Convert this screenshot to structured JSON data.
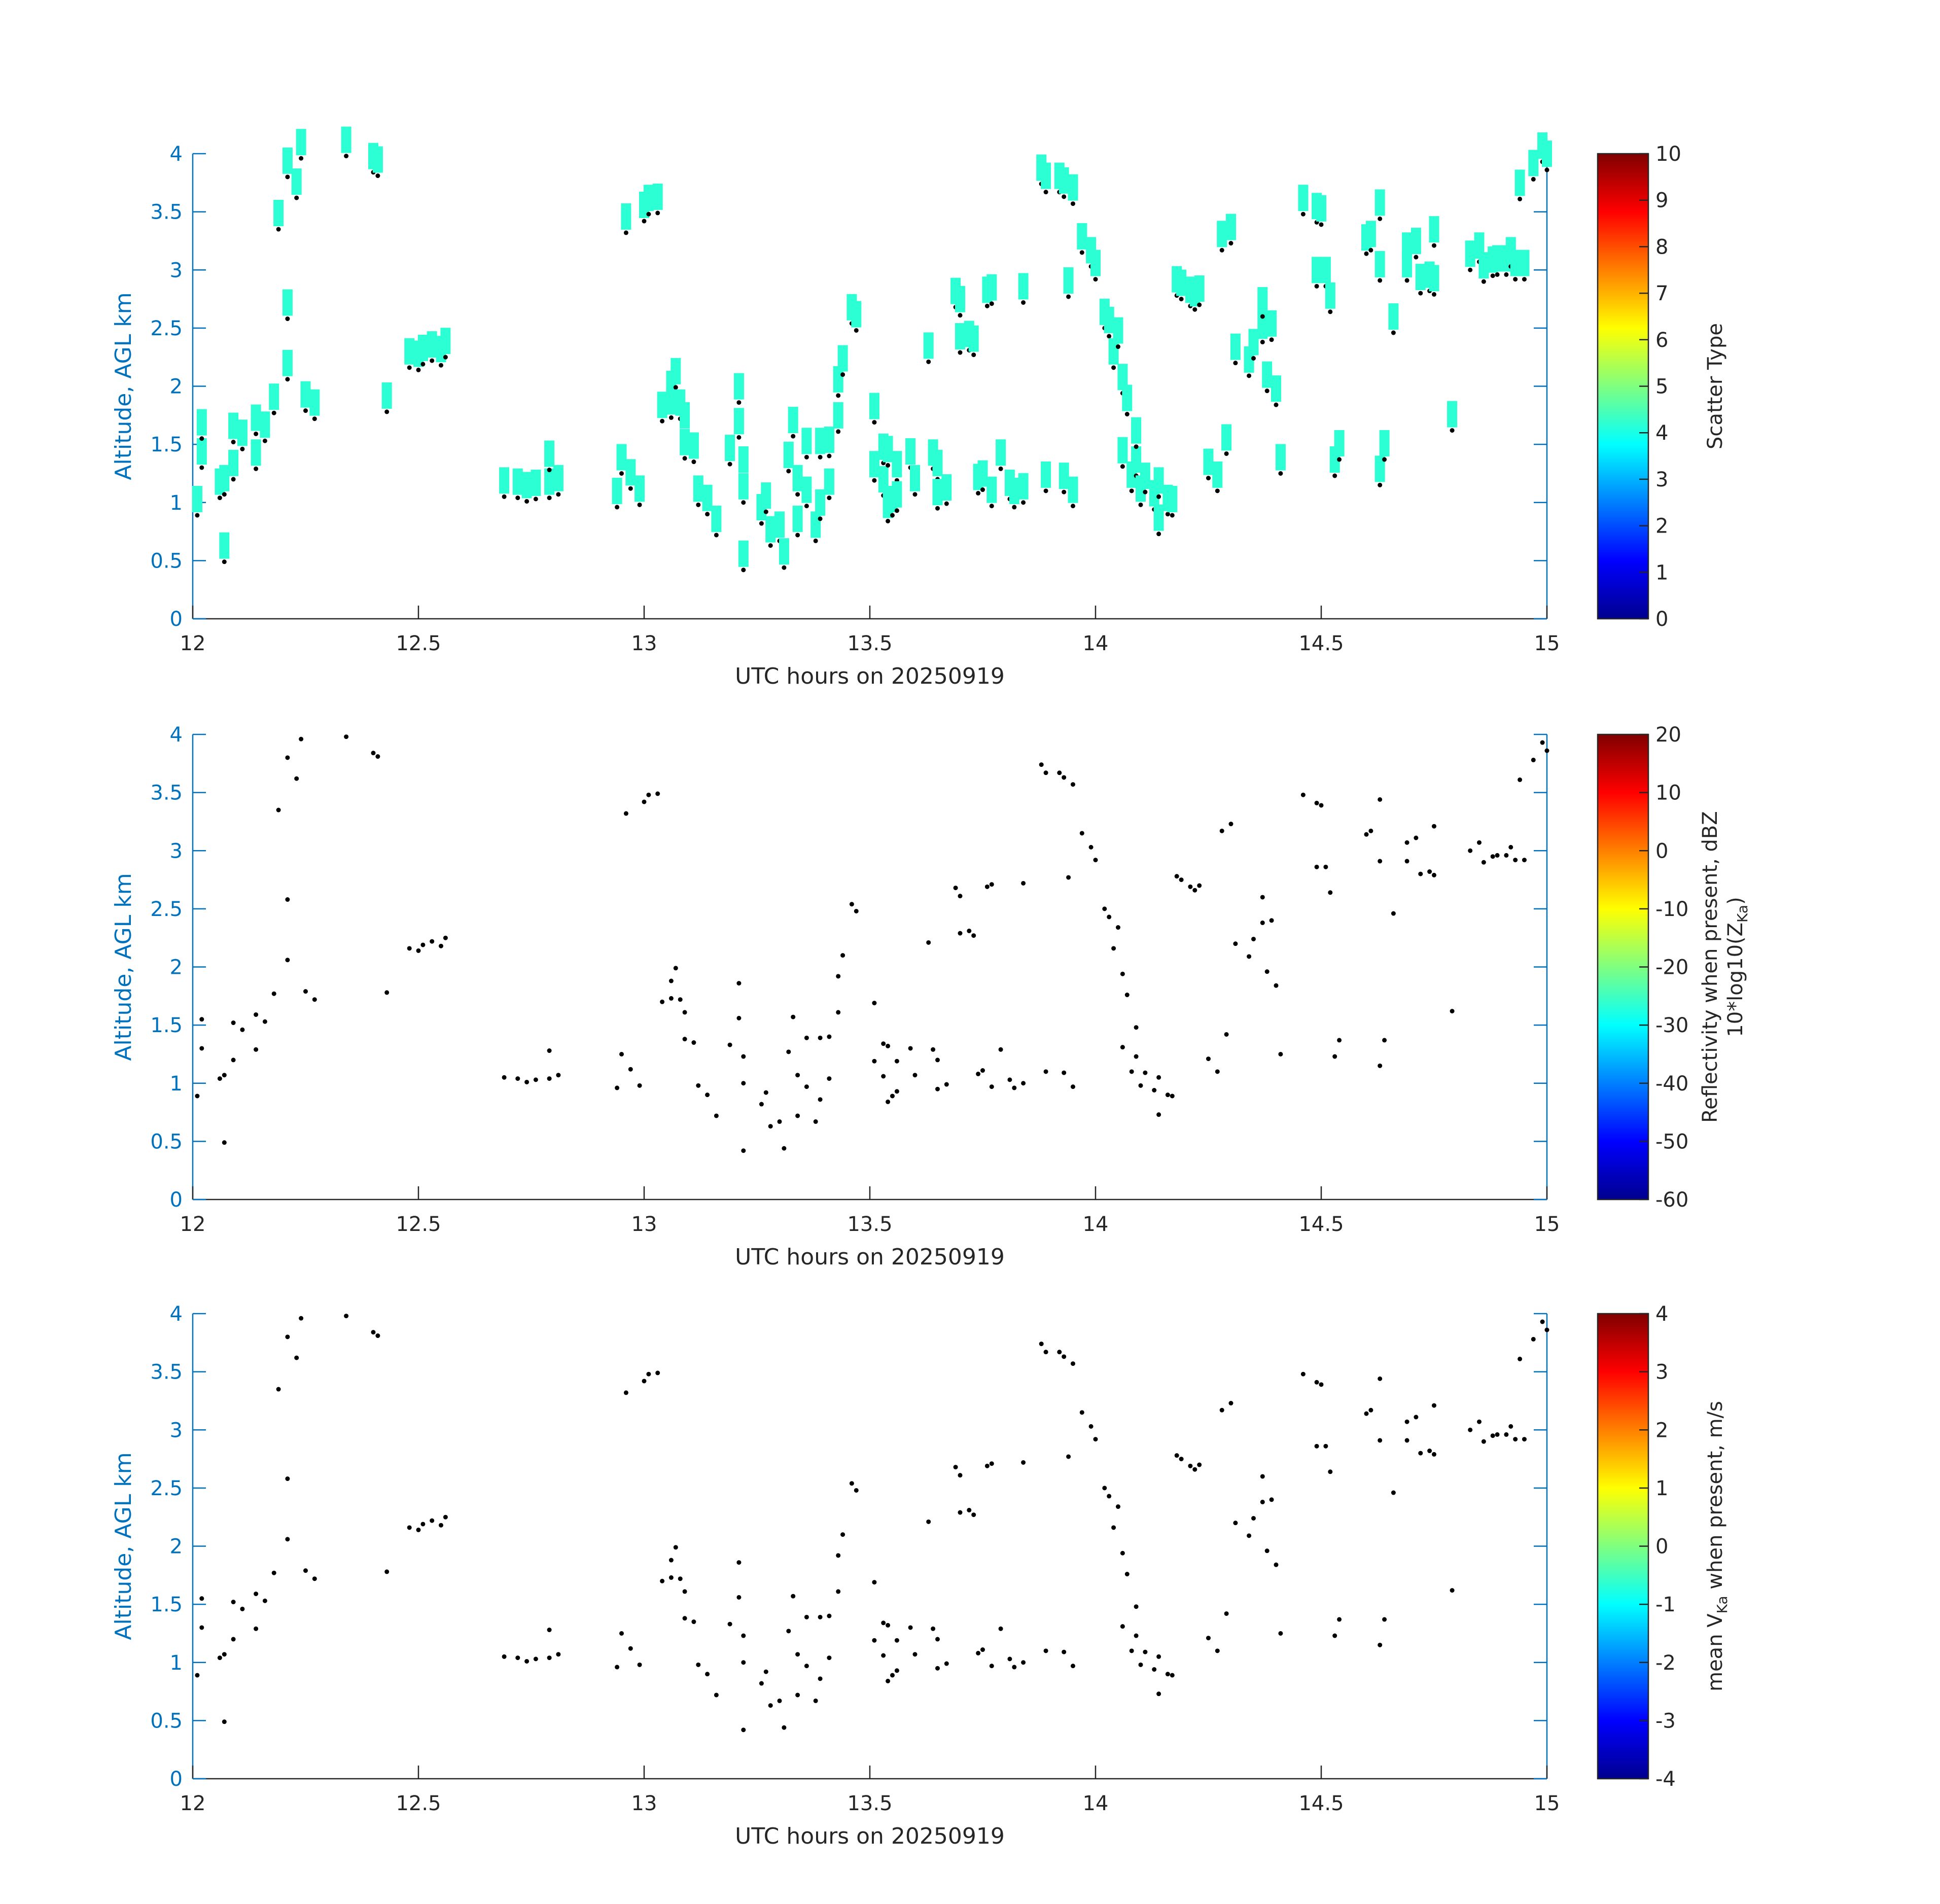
{
  "colors": {
    "axis_blue": "#0072bd",
    "tick_text": "#262626",
    "marker_cyan": "#2bffd3",
    "point_black": "#000000"
  },
  "colormap": "jet",
  "chart_data": [
    {
      "type": "scatter",
      "xlabel": "UTC hours on 20250919",
      "ylabel": "Altitude, AGL km",
      "xlim": [
        12,
        15
      ],
      "ylim": [
        0,
        4
      ],
      "xticks": [
        "12",
        "12.5",
        "13",
        "13.5",
        "14",
        "14.5",
        "15"
      ],
      "yticks": [
        "0",
        "0.5",
        "1",
        "1.5",
        "2",
        "2.5",
        "3",
        "3.5",
        "4"
      ],
      "colorbar": {
        "label": "Scatter Type",
        "label_sub": "",
        "range": [
          0,
          10
        ],
        "ticks": [
          "0",
          "1",
          "2",
          "3",
          "4",
          "5",
          "6",
          "7",
          "8",
          "9",
          "10"
        ]
      },
      "marker_value": 3.8,
      "marker_color": "#2bffd3"
    },
    {
      "type": "scatter",
      "xlabel": "UTC hours on 20250919",
      "ylabel": "Altitude, AGL km",
      "xlim": [
        12,
        15
      ],
      "ylim": [
        0,
        4
      ],
      "xticks": [
        "12",
        "12.5",
        "13",
        "13.5",
        "14",
        "14.5",
        "15"
      ],
      "yticks": [
        "0",
        "0.5",
        "1",
        "1.5",
        "2",
        "2.5",
        "3",
        "3.5",
        "4"
      ],
      "colorbar": {
        "label": "Reflectivity when present, dBZ",
        "label_sub": "10*log10(Z",
        "label_sub_subscript": "Ka",
        "label_sub_after": ")",
        "range": [
          -60,
          20
        ],
        "ticks": [
          "-60",
          "-50",
          "-40",
          "-30",
          "-20",
          "-10",
          "0",
          "10",
          "20"
        ]
      }
    },
    {
      "type": "scatter",
      "xlabel": "UTC hours on 20250919",
      "ylabel": "Altitude, AGL km",
      "xlim": [
        12,
        15
      ],
      "ylim": [
        0,
        4
      ],
      "xticks": [
        "12",
        "12.5",
        "13",
        "13.5",
        "14",
        "14.5",
        "15"
      ],
      "yticks": [
        "0",
        "0.5",
        "1",
        "1.5",
        "2",
        "2.5",
        "3",
        "3.5",
        "4"
      ],
      "colorbar": {
        "label": "mean V",
        "label_subscript": "Ka",
        "label_after": " when present, m/s",
        "range": [
          -4,
          4
        ],
        "ticks": [
          "-4",
          "-3",
          "-2",
          "-1",
          "0",
          "1",
          "2",
          "3",
          "4"
        ]
      }
    }
  ],
  "points": [
    [
      12.01,
      0.89
    ],
    [
      12.02,
      1.3
    ],
    [
      12.02,
      1.55
    ],
    [
      12.06,
      1.04
    ],
    [
      12.07,
      1.07
    ],
    [
      12.07,
      0.49
    ],
    [
      12.09,
      1.2
    ],
    [
      12.09,
      1.52
    ],
    [
      12.11,
      1.46
    ],
    [
      12.14,
      1.29
    ],
    [
      12.14,
      1.59
    ],
    [
      12.16,
      1.53
    ],
    [
      12.18,
      1.77
    ],
    [
      12.19,
      3.35
    ],
    [
      12.21,
      3.8
    ],
    [
      12.21,
      2.58
    ],
    [
      12.21,
      2.06
    ],
    [
      12.23,
      3.62
    ],
    [
      12.24,
      3.96
    ],
    [
      12.25,
      1.79
    ],
    [
      12.27,
      1.72
    ],
    [
      12.34,
      3.98
    ],
    [
      12.4,
      3.84
    ],
    [
      12.41,
      3.81
    ],
    [
      12.43,
      1.78
    ],
    [
      12.48,
      2.16
    ],
    [
      12.5,
      2.14
    ],
    [
      12.51,
      2.19
    ],
    [
      12.53,
      2.22
    ],
    [
      12.55,
      2.18
    ],
    [
      12.56,
      2.25
    ],
    [
      12.69,
      1.05
    ],
    [
      12.72,
      1.04
    ],
    [
      12.74,
      1.01
    ],
    [
      12.76,
      1.03
    ],
    [
      12.79,
      1.04
    ],
    [
      12.79,
      1.28
    ],
    [
      12.81,
      1.07
    ],
    [
      12.94,
      0.96
    ],
    [
      12.95,
      1.25
    ],
    [
      12.96,
      3.32
    ],
    [
      12.97,
      1.12
    ],
    [
      12.99,
      0.98
    ],
    [
      13.0,
      3.42
    ],
    [
      13.01,
      3.48
    ],
    [
      13.03,
      3.49
    ],
    [
      13.04,
      1.7
    ],
    [
      13.06,
      1.88
    ],
    [
      13.06,
      1.73
    ],
    [
      13.07,
      1.99
    ],
    [
      13.08,
      1.72
    ],
    [
      13.09,
      1.61
    ],
    [
      13.09,
      1.38
    ],
    [
      13.11,
      1.35
    ],
    [
      13.12,
      0.98
    ],
    [
      13.14,
      0.9
    ],
    [
      13.16,
      0.72
    ],
    [
      13.19,
      1.33
    ],
    [
      13.21,
      1.56
    ],
    [
      13.21,
      1.86
    ],
    [
      13.22,
      1.23
    ],
    [
      13.22,
      1.0
    ],
    [
      13.22,
      0.42
    ],
    [
      13.26,
      0.82
    ],
    [
      13.27,
      0.92
    ],
    [
      13.28,
      0.63
    ],
    [
      13.3,
      0.67
    ],
    [
      13.31,
      0.44
    ],
    [
      13.32,
      1.27
    ],
    [
      13.33,
      1.57
    ],
    [
      13.34,
      1.07
    ],
    [
      13.34,
      0.72
    ],
    [
      13.36,
      1.39
    ],
    [
      13.36,
      0.97
    ],
    [
      13.38,
      0.67
    ],
    [
      13.39,
      1.39
    ],
    [
      13.39,
      0.86
    ],
    [
      13.41,
      1.4
    ],
    [
      13.41,
      1.04
    ],
    [
      13.43,
      1.61
    ],
    [
      13.43,
      1.92
    ],
    [
      13.44,
      2.1
    ],
    [
      13.46,
      2.54
    ],
    [
      13.47,
      2.48
    ],
    [
      13.51,
      1.69
    ],
    [
      13.51,
      1.19
    ],
    [
      13.53,
      1.34
    ],
    [
      13.53,
      1.06
    ],
    [
      13.54,
      1.32
    ],
    [
      13.54,
      0.84
    ],
    [
      13.55,
      0.89
    ],
    [
      13.56,
      1.19
    ],
    [
      13.56,
      0.93
    ],
    [
      13.59,
      1.3
    ],
    [
      13.6,
      1.07
    ],
    [
      13.63,
      2.21
    ],
    [
      13.64,
      1.29
    ],
    [
      13.65,
      1.2
    ],
    [
      13.65,
      0.95
    ],
    [
      13.67,
      0.99
    ],
    [
      13.69,
      2.68
    ],
    [
      13.7,
      2.61
    ],
    [
      13.7,
      2.29
    ],
    [
      13.72,
      2.31
    ],
    [
      13.73,
      2.27
    ],
    [
      13.74,
      1.08
    ],
    [
      13.75,
      1.11
    ],
    [
      13.76,
      2.69
    ],
    [
      13.77,
      2.71
    ],
    [
      13.77,
      0.97
    ],
    [
      13.79,
      1.29
    ],
    [
      13.81,
      1.03
    ],
    [
      13.82,
      0.96
    ],
    [
      13.84,
      2.72
    ],
    [
      13.84,
      1.0
    ],
    [
      13.88,
      3.74
    ],
    [
      13.89,
      3.67
    ],
    [
      13.89,
      1.1
    ],
    [
      13.92,
      3.67
    ],
    [
      13.93,
      3.63
    ],
    [
      13.93,
      1.09
    ],
    [
      13.94,
      2.77
    ],
    [
      13.95,
      0.97
    ],
    [
      13.95,
      3.57
    ],
    [
      13.97,
      3.15
    ],
    [
      13.99,
      3.03
    ],
    [
      14.0,
      2.92
    ],
    [
      14.02,
      2.5
    ],
    [
      14.03,
      2.43
    ],
    [
      14.04,
      2.16
    ],
    [
      14.05,
      2.34
    ],
    [
      14.06,
      1.94
    ],
    [
      14.06,
      1.31
    ],
    [
      14.07,
      1.76
    ],
    [
      14.08,
      1.1
    ],
    [
      14.09,
      1.23
    ],
    [
      14.09,
      1.48
    ],
    [
      14.1,
      0.98
    ],
    [
      14.11,
      1.09
    ],
    [
      14.13,
      0.94
    ],
    [
      14.14,
      1.05
    ],
    [
      14.14,
      0.73
    ],
    [
      14.16,
      0.9
    ],
    [
      14.17,
      0.89
    ],
    [
      14.18,
      2.78
    ],
    [
      14.19,
      2.75
    ],
    [
      14.21,
      2.69
    ],
    [
      14.22,
      2.66
    ],
    [
      14.23,
      2.7
    ],
    [
      14.25,
      1.21
    ],
    [
      14.27,
      1.1
    ],
    [
      14.28,
      3.17
    ],
    [
      14.29,
      1.42
    ],
    [
      14.3,
      3.23
    ],
    [
      14.31,
      2.2
    ],
    [
      14.34,
      2.09
    ],
    [
      14.35,
      2.24
    ],
    [
      14.37,
      2.38
    ],
    [
      14.37,
      2.6
    ],
    [
      14.38,
      1.96
    ],
    [
      14.39,
      2.4
    ],
    [
      14.4,
      1.84
    ],
    [
      14.41,
      1.25
    ],
    [
      14.46,
      3.48
    ],
    [
      14.49,
      3.41
    ],
    [
      14.49,
      2.86
    ],
    [
      14.5,
      3.39
    ],
    [
      14.51,
      2.86
    ],
    [
      14.52,
      2.64
    ],
    [
      14.53,
      1.23
    ],
    [
      14.54,
      1.37
    ],
    [
      14.6,
      3.14
    ],
    [
      14.61,
      3.17
    ],
    [
      14.63,
      3.44
    ],
    [
      14.63,
      2.91
    ],
    [
      14.63,
      1.15
    ],
    [
      14.64,
      1.37
    ],
    [
      14.66,
      2.46
    ],
    [
      14.69,
      3.07
    ],
    [
      14.69,
      2.91
    ],
    [
      14.71,
      3.11
    ],
    [
      14.72,
      2.8
    ],
    [
      14.74,
      2.82
    ],
    [
      14.75,
      3.21
    ],
    [
      14.75,
      2.79
    ],
    [
      14.79,
      1.62
    ],
    [
      14.83,
      3.0
    ],
    [
      14.85,
      3.07
    ],
    [
      14.86,
      2.9
    ],
    [
      14.88,
      2.95
    ],
    [
      14.89,
      2.96
    ],
    [
      14.91,
      2.96
    ],
    [
      14.92,
      3.03
    ],
    [
      14.93,
      2.92
    ],
    [
      14.94,
      3.61
    ],
    [
      14.95,
      2.92
    ],
    [
      14.97,
      3.78
    ],
    [
      14.99,
      3.93
    ],
    [
      15.0,
      3.86
    ]
  ]
}
